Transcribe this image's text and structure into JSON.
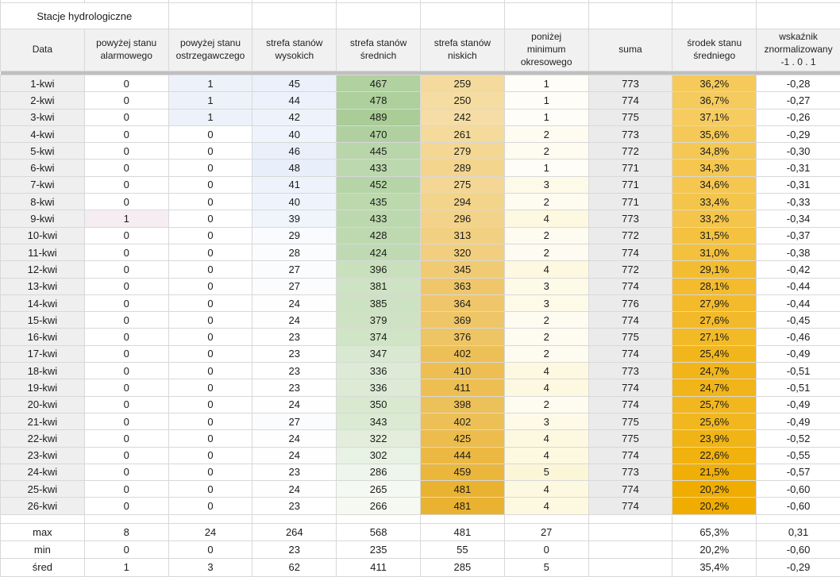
{
  "title": "Stacje hydrologiczne",
  "colors": {
    "grid_border": "#d8d8d8",
    "header_bg": "#f1f1f1",
    "date_col_bg": "#efefef",
    "separator_band": "#bfbfbf",
    "suma_fill": "#ebebeb"
  },
  "table": {
    "columns": [
      {
        "id": "data",
        "label": "Data"
      },
      {
        "id": "alarmowy",
        "label": "powyżej stanu\nalarmowego",
        "scale": {
          "min": 0,
          "max": 1,
          "color": "#f6edf3"
        }
      },
      {
        "id": "ostrzegawczy",
        "label": "powyżej stanu\nostrzegawczego",
        "scale": {
          "min": 0,
          "max": 1,
          "color": "#edf2fa"
        }
      },
      {
        "id": "wysokie",
        "label": "strefa stanów\nwysokich",
        "scale": {
          "min": 23,
          "max": 48,
          "color": "#e8effa"
        }
      },
      {
        "id": "srednie",
        "label": "strefa stanów\nśrednich",
        "scale": {
          "min": 235,
          "max": 568,
          "color": "#8fbe77"
        }
      },
      {
        "id": "niskie",
        "label": "strefa stanów\nniskich",
        "scale": {
          "min": 55,
          "max": 481,
          "color": "#e9b231"
        }
      },
      {
        "id": "minimum",
        "label": "poniżej\nminimum\nokresowego",
        "scale": {
          "min": 0,
          "max": 27,
          "color": "#efcf30"
        }
      },
      {
        "id": "suma",
        "label": "suma",
        "fill": "#ebebeb"
      },
      {
        "id": "srodek",
        "label": "środek stanu\nśredniego",
        "scale": {
          "min": 20.2,
          "max": 65.3,
          "color": "#f0ad00",
          "reversed": true
        }
      },
      {
        "id": "wskaznik",
        "label": "wskaźnik\nznormalizowany\n-1 . 0 . 1"
      }
    ],
    "rows": [
      [
        "1-kwi",
        0,
        1,
        45,
        467,
        259,
        1,
        773,
        "36,2%",
        "-0,28"
      ],
      [
        "2-kwi",
        0,
        1,
        44,
        478,
        250,
        1,
        774,
        "36,7%",
        "-0,27"
      ],
      [
        "3-kwi",
        0,
        1,
        42,
        489,
        242,
        1,
        775,
        "37,1%",
        "-0,26"
      ],
      [
        "4-kwi",
        0,
        0,
        40,
        470,
        261,
        2,
        773,
        "35,6%",
        "-0,29"
      ],
      [
        "5-kwi",
        0,
        0,
        46,
        445,
        279,
        2,
        772,
        "34,8%",
        "-0,30"
      ],
      [
        "6-kwi",
        0,
        0,
        48,
        433,
        289,
        1,
        771,
        "34,3%",
        "-0,31"
      ],
      [
        "7-kwi",
        0,
        0,
        41,
        452,
        275,
        3,
        771,
        "34,6%",
        "-0,31"
      ],
      [
        "8-kwi",
        0,
        0,
        40,
        435,
        294,
        2,
        771,
        "33,4%",
        "-0,33"
      ],
      [
        "9-kwi",
        1,
        0,
        39,
        433,
        296,
        4,
        773,
        "33,2%",
        "-0,34"
      ],
      [
        "10-kwi",
        0,
        0,
        29,
        428,
        313,
        2,
        772,
        "31,5%",
        "-0,37"
      ],
      [
        "11-kwi",
        0,
        0,
        28,
        424,
        320,
        2,
        774,
        "31,0%",
        "-0,38"
      ],
      [
        "12-kwi",
        0,
        0,
        27,
        396,
        345,
        4,
        772,
        "29,1%",
        "-0,42"
      ],
      [
        "13-kwi",
        0,
        0,
        27,
        381,
        363,
        3,
        774,
        "28,1%",
        "-0,44"
      ],
      [
        "14-kwi",
        0,
        0,
        24,
        385,
        364,
        3,
        776,
        "27,9%",
        "-0,44"
      ],
      [
        "15-kwi",
        0,
        0,
        24,
        379,
        369,
        2,
        774,
        "27,6%",
        "-0,45"
      ],
      [
        "16-kwi",
        0,
        0,
        23,
        374,
        376,
        2,
        775,
        "27,1%",
        "-0,46"
      ],
      [
        "17-kwi",
        0,
        0,
        23,
        347,
        402,
        2,
        774,
        "25,4%",
        "-0,49"
      ],
      [
        "18-kwi",
        0,
        0,
        23,
        336,
        410,
        4,
        773,
        "24,7%",
        "-0,51"
      ],
      [
        "19-kwi",
        0,
        0,
        23,
        336,
        411,
        4,
        774,
        "24,7%",
        "-0,51"
      ],
      [
        "20-kwi",
        0,
        0,
        24,
        350,
        398,
        2,
        774,
        "25,7%",
        "-0,49"
      ],
      [
        "21-kwi",
        0,
        0,
        27,
        343,
        402,
        3,
        775,
        "25,6%",
        "-0,49"
      ],
      [
        "22-kwi",
        0,
        0,
        24,
        322,
        425,
        4,
        775,
        "23,9%",
        "-0,52"
      ],
      [
        "23-kwi",
        0,
        0,
        24,
        302,
        444,
        4,
        774,
        "22,6%",
        "-0,55"
      ],
      [
        "24-kwi",
        0,
        0,
        23,
        286,
        459,
        5,
        773,
        "21,5%",
        "-0,57"
      ],
      [
        "25-kwi",
        0,
        0,
        24,
        265,
        481,
        4,
        774,
        "20,2%",
        "-0,60"
      ],
      [
        "26-kwi",
        0,
        0,
        23,
        266,
        481,
        4,
        774,
        "20,2%",
        "-0,60"
      ]
    ],
    "summary_rows": [
      [
        "max",
        8,
        24,
        264,
        568,
        481,
        27,
        "",
        "65,3%",
        "0,31"
      ],
      [
        "min",
        0,
        0,
        23,
        235,
        55,
        0,
        "",
        "20,2%",
        "-0,60"
      ],
      [
        "śred",
        1,
        3,
        62,
        411,
        285,
        5,
        "",
        "35,4%",
        "-0,29"
      ]
    ]
  }
}
